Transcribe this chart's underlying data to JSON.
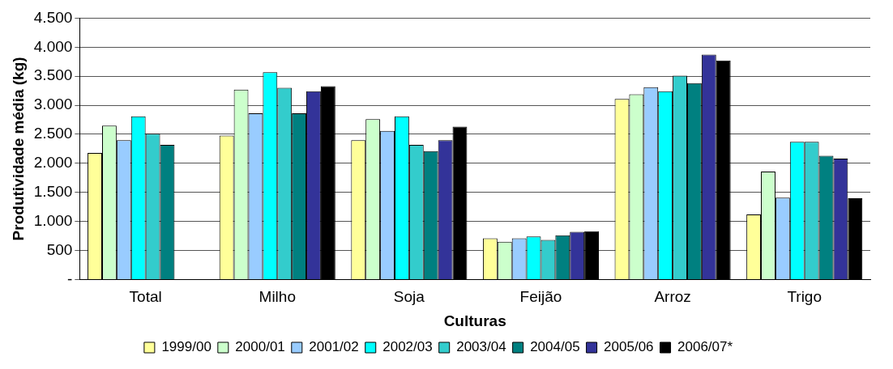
{
  "chart_data": {
    "type": "bar",
    "xlabel": "Culturas",
    "ylabel": "Produtividade média (kg)",
    "categories": [
      "Total",
      "Milho",
      "Soja",
      "Feijão",
      "Arroz",
      "Trigo"
    ],
    "series": [
      {
        "name": "1999/00",
        "color": "#ffff99",
        "values": [
          2180,
          2480,
          2400,
          710,
          3110,
          1120
        ]
      },
      {
        "name": "2000/01",
        "color": "#ccffcc",
        "values": [
          2650,
          3270,
          2760,
          650,
          3190,
          1860
        ]
      },
      {
        "name": "2001/02",
        "color": "#99ccff",
        "values": [
          2400,
          2860,
          2560,
          710,
          3310,
          1410
        ]
      },
      {
        "name": "2002/03",
        "color": "#00ffff",
        "values": [
          2810,
          3570,
          2810,
          740,
          3240,
          2370
        ]
      },
      {
        "name": "2003/04",
        "color": "#33cccc",
        "values": [
          2510,
          3300,
          2320,
          680,
          3510,
          2370
        ]
      },
      {
        "name": "2004/05",
        "color": "#008080",
        "values": [
          2320,
          2860,
          2210,
          760,
          3380,
          2130
        ]
      },
      {
        "name": "2005/06",
        "color": "#333399",
        "values": [
          null,
          3240,
          2400,
          820,
          3870,
          2080
        ]
      },
      {
        "name": "2006/07*",
        "color": "#000000",
        "values": [
          null,
          3330,
          2630,
          830,
          3770,
          1400
        ]
      }
    ],
    "ylim": [
      0,
      4500
    ],
    "yticks": [
      {
        "value": 0,
        "label": "-"
      },
      {
        "value": 500,
        "label": "500"
      },
      {
        "value": 1000,
        "label": "1.000"
      },
      {
        "value": 1500,
        "label": "1.500"
      },
      {
        "value": 2000,
        "label": "2.000"
      },
      {
        "value": 2500,
        "label": "2.500"
      },
      {
        "value": 3000,
        "label": "3.000"
      },
      {
        "value": 3500,
        "label": "3.500"
      },
      {
        "value": 4000,
        "label": "4.000"
      },
      {
        "value": 4500,
        "label": "4.500"
      }
    ],
    "grid": "y",
    "legend": "bottom"
  }
}
